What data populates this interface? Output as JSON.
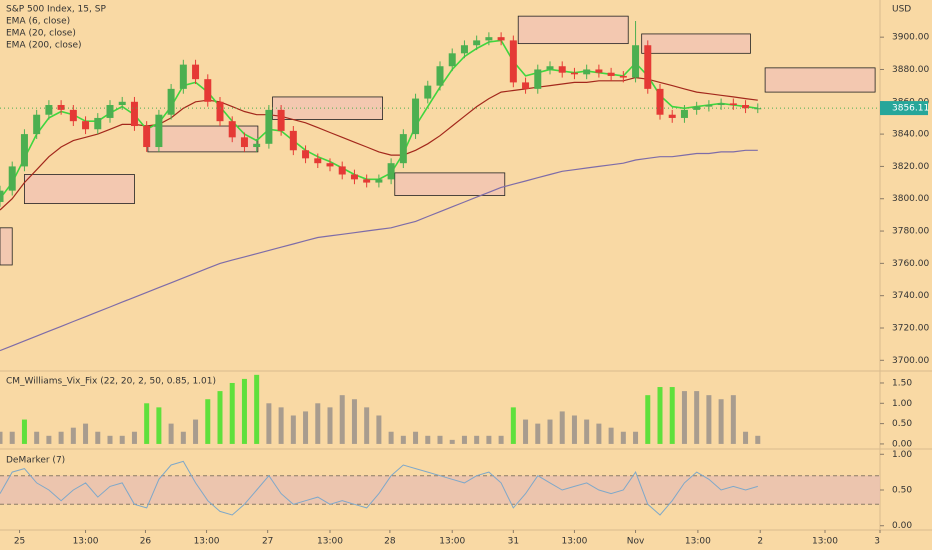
{
  "chart_data": [
    {
      "type": "candlestick",
      "title": "S&P 500 Index, 15, SP",
      "unit": "USD",
      "x": [
        0,
        1,
        2,
        3,
        4,
        5,
        6,
        7,
        8,
        9,
        10,
        11,
        12,
        13,
        14,
        15,
        16,
        17,
        18,
        19,
        20,
        21,
        22,
        23,
        24,
        25,
        26,
        27,
        28,
        29,
        30,
        31,
        32,
        33,
        34,
        35,
        36,
        37,
        38,
        39,
        40,
        41,
        42,
        43,
        44,
        45,
        46,
        47,
        48,
        49,
        50,
        51,
        52,
        53,
        54,
        55,
        56,
        57,
        58,
        59,
        60,
        61,
        62
      ],
      "open": [
        3798,
        3805,
        3820,
        3840,
        3852,
        3858,
        3855,
        3848,
        3843,
        3850,
        3858,
        3860,
        3845,
        3832,
        3852,
        3868,
        3883,
        3874,
        3860,
        3848,
        3838,
        3832,
        3834,
        3855,
        3842,
        3830,
        3825,
        3822,
        3820,
        3815,
        3812,
        3810,
        3812,
        3822,
        3840,
        3862,
        3870,
        3882,
        3890,
        3895,
        3898,
        3900,
        3898,
        3872,
        3868,
        3880,
        3882,
        3878,
        3877,
        3880,
        3878,
        3876,
        3875,
        3895,
        3868,
        3852,
        3850,
        3855,
        3857,
        3858,
        3859,
        3858,
        3856
      ],
      "high": [
        3808,
        3823,
        3843,
        3855,
        3861,
        3861,
        3858,
        3851,
        3853,
        3861,
        3863,
        3863,
        3848,
        3855,
        3871,
        3886,
        3886,
        3877,
        3863,
        3851,
        3841,
        3837,
        3858,
        3858,
        3845,
        3833,
        3828,
        3825,
        3823,
        3818,
        3815,
        3815,
        3825,
        3843,
        3865,
        3873,
        3885,
        3893,
        3898,
        3901,
        3903,
        3903,
        3901,
        3875,
        3883,
        3885,
        3885,
        3881,
        3883,
        3883,
        3881,
        3879,
        3910,
        3898,
        3871,
        3855,
        3858,
        3860,
        3861,
        3862,
        3862,
        3861,
        3859
      ],
      "low": [
        3795,
        3802,
        3817,
        3837,
        3849,
        3852,
        3845,
        3840,
        3840,
        3847,
        3855,
        3842,
        3829,
        3829,
        3849,
        3865,
        3871,
        3857,
        3845,
        3835,
        3829,
        3829,
        3831,
        3839,
        3827,
        3822,
        3819,
        3817,
        3812,
        3809,
        3807,
        3807,
        3809,
        3819,
        3837,
        3859,
        3867,
        3879,
        3887,
        3892,
        3895,
        3895,
        3869,
        3865,
        3865,
        3877,
        3875,
        3874,
        3874,
        3875,
        3873,
        3872,
        3872,
        3865,
        3849,
        3847,
        3847,
        3852,
        3854,
        3855,
        3855,
        3853,
        3853
      ],
      "close": [
        3805,
        3820,
        3840,
        3852,
        3858,
        3855,
        3848,
        3843,
        3850,
        3858,
        3860,
        3845,
        3832,
        3852,
        3868,
        3883,
        3874,
        3860,
        3848,
        3838,
        3832,
        3834,
        3855,
        3842,
        3830,
        3825,
        3822,
        3820,
        3815,
        3812,
        3810,
        3812,
        3822,
        3840,
        3862,
        3870,
        3882,
        3890,
        3895,
        3898,
        3900,
        3898,
        3872,
        3868,
        3880,
        3882,
        3878,
        3877,
        3880,
        3878,
        3876,
        3875,
        3895,
        3868,
        3852,
        3850,
        3855,
        3857,
        3858,
        3859,
        3858,
        3856,
        3856
      ],
      "up_color": "#4caf50",
      "down_color": "#e53935",
      "series": [
        {
          "name": "EMA (6, close)",
          "color": "#3fd63f",
          "values": [
            3800,
            3810,
            3825,
            3840,
            3850,
            3854,
            3852,
            3848,
            3848,
            3853,
            3857,
            3852,
            3843,
            3847,
            3857,
            3870,
            3872,
            3866,
            3857,
            3848,
            3840,
            3836,
            3843,
            3842,
            3836,
            3830,
            3826,
            3823,
            3819,
            3815,
            3812,
            3812,
            3816,
            3828,
            3845,
            3857,
            3869,
            3880,
            3888,
            3893,
            3897,
            3898,
            3885,
            3876,
            3878,
            3880,
            3879,
            3878,
            3879,
            3878,
            3877,
            3876,
            3884,
            3876,
            3864,
            3857,
            3856,
            3857,
            3858,
            3859,
            3858,
            3857,
            3856
          ]
        },
        {
          "name": "EMA (20, close)",
          "color": "#a3281c",
          "values": [
            3793,
            3800,
            3810,
            3818,
            3826,
            3832,
            3836,
            3838,
            3840,
            3843,
            3846,
            3846,
            3845,
            3846,
            3850,
            3856,
            3860,
            3861,
            3860,
            3857,
            3854,
            3852,
            3852,
            3851,
            3849,
            3847,
            3844,
            3841,
            3838,
            3835,
            3832,
            3829,
            3827,
            3827,
            3830,
            3834,
            3839,
            3845,
            3851,
            3857,
            3862,
            3866,
            3867,
            3868,
            3869,
            3870,
            3871,
            3872,
            3872,
            3873,
            3873,
            3873,
            3875,
            3874,
            3872,
            3870,
            3868,
            3866,
            3865,
            3864,
            3863,
            3862,
            3861
          ]
        },
        {
          "name": "EMA (200, close)",
          "color": "#7e6ca8",
          "values": [
            3706,
            3709,
            3712,
            3715,
            3718,
            3721,
            3724,
            3727,
            3730,
            3733,
            3736,
            3739,
            3742,
            3745,
            3748,
            3751,
            3754,
            3757,
            3760,
            3762,
            3764,
            3766,
            3768,
            3770,
            3772,
            3774,
            3776,
            3777,
            3778,
            3779,
            3780,
            3781,
            3782,
            3784,
            3786,
            3789,
            3792,
            3795,
            3798,
            3801,
            3804,
            3807,
            3809,
            3811,
            3813,
            3815,
            3817,
            3818,
            3819,
            3820,
            3821,
            3822,
            3824,
            3825,
            3826,
            3826,
            3827,
            3828,
            3828,
            3829,
            3829,
            3830,
            3830
          ]
        }
      ],
      "zones": [
        {
          "x": [
            0,
            1
          ],
          "y": [
            3759,
            3782
          ]
        },
        {
          "x": [
            2.0,
            11.0
          ],
          "y": [
            3797,
            3815
          ]
        },
        {
          "x": [
            12.1,
            21.1
          ],
          "y": [
            3829,
            3845
          ]
        },
        {
          "x": [
            22.3,
            31.3
          ],
          "y": [
            3849,
            3863
          ]
        },
        {
          "x": [
            32.3,
            41.3
          ],
          "y": [
            3802,
            3816
          ]
        },
        {
          "x": [
            42.4,
            51.4
          ],
          "y": [
            3896,
            3913
          ]
        },
        {
          "x": [
            52.5,
            61.4
          ],
          "y": [
            3890,
            3902
          ]
        },
        {
          "x": [
            62.6,
            71.6
          ],
          "y": [
            3866,
            3881
          ]
        }
      ],
      "zone_color": "#f3c8b0",
      "last_price": 3856.11,
      "xlim": [
        0,
        72
      ],
      "ylim": [
        3694,
        3923
      ],
      "yticks": [
        {
          "value": 3700,
          "label": "3700.00"
        },
        {
          "value": 3720,
          "label": "3720.00"
        },
        {
          "value": 3740,
          "label": "3740.00"
        },
        {
          "value": 3760,
          "label": "3760.00"
        },
        {
          "value": 3780,
          "label": "3780.00"
        },
        {
          "value": 3800,
          "label": "3800.00"
        },
        {
          "value": 3820,
          "label": "3820.00"
        },
        {
          "value": 3840,
          "label": "3840.00"
        },
        {
          "value": 3860,
          "label": "3860.00"
        },
        {
          "value": 3880,
          "label": "3880.00"
        },
        {
          "value": 3900,
          "label": "3900.00"
        }
      ]
    },
    {
      "type": "bar",
      "title": "CM_Williams_Vix_Fix (22, 20, 2, 50, 0.85, 1.01)",
      "values": [
        0.3,
        0.3,
        0.6,
        0.3,
        0.2,
        0.3,
        0.4,
        0.5,
        0.3,
        0.2,
        0.2,
        0.3,
        1.0,
        0.9,
        0.5,
        0.3,
        0.6,
        1.1,
        1.3,
        1.5,
        1.6,
        1.7,
        1.0,
        0.9,
        0.7,
        0.8,
        1.0,
        0.9,
        1.2,
        1.1,
        0.9,
        0.7,
        0.3,
        0.2,
        0.3,
        0.2,
        0.2,
        0.1,
        0.2,
        0.2,
        0.2,
        0.2,
        0.9,
        0.6,
        0.5,
        0.6,
        0.8,
        0.7,
        0.6,
        0.5,
        0.4,
        0.3,
        0.3,
        1.2,
        1.4,
        1.4,
        1.3,
        1.3,
        1.2,
        1.1,
        1.2,
        0.3,
        0.2
      ],
      "colors": [
        "#a89c8e",
        "#a89c8e",
        "#5fe03c",
        "#a89c8e",
        "#a89c8e",
        "#a89c8e",
        "#a89c8e",
        "#a89c8e",
        "#a89c8e",
        "#a89c8e",
        "#a89c8e",
        "#a89c8e",
        "#5fe03c",
        "#5fe03c",
        "#a89c8e",
        "#a89c8e",
        "#a89c8e",
        "#5fe03c",
        "#5fe03c",
        "#5fe03c",
        "#5fe03c",
        "#5fe03c",
        "#a89c8e",
        "#a89c8e",
        "#a89c8e",
        "#a89c8e",
        "#a89c8e",
        "#a89c8e",
        "#a89c8e",
        "#a89c8e",
        "#a89c8e",
        "#a89c8e",
        "#a89c8e",
        "#a89c8e",
        "#a89c8e",
        "#a89c8e",
        "#a89c8e",
        "#a89c8e",
        "#a89c8e",
        "#a89c8e",
        "#a89c8e",
        "#a89c8e",
        "#5fe03c",
        "#a89c8e",
        "#a89c8e",
        "#a89c8e",
        "#a89c8e",
        "#a89c8e",
        "#a89c8e",
        "#a89c8e",
        "#a89c8e",
        "#a89c8e",
        "#a89c8e",
        "#5fe03c",
        "#5fe03c",
        "#5fe03c",
        "#a89c8e",
        "#a89c8e",
        "#a89c8e",
        "#a89c8e",
        "#a89c8e",
        "#a89c8e",
        "#a89c8e"
      ],
      "ylim": [
        -0.1,
        1.77
      ],
      "yticks": [
        {
          "value": 0,
          "label": "0.00"
        },
        {
          "value": 0.5,
          "label": "0.50"
        },
        {
          "value": 1,
          "label": "1.00"
        },
        {
          "value": 1.5,
          "label": "1.50"
        }
      ]
    },
    {
      "type": "line",
      "title": "DeMarker (7)",
      "color": "#7fa8c9",
      "values": [
        0.45,
        0.75,
        0.8,
        0.6,
        0.5,
        0.35,
        0.5,
        0.6,
        0.4,
        0.55,
        0.6,
        0.3,
        0.25,
        0.65,
        0.85,
        0.9,
        0.6,
        0.35,
        0.2,
        0.15,
        0.3,
        0.5,
        0.7,
        0.45,
        0.3,
        0.35,
        0.4,
        0.3,
        0.35,
        0.3,
        0.25,
        0.45,
        0.7,
        0.85,
        0.8,
        0.75,
        0.7,
        0.65,
        0.6,
        0.7,
        0.75,
        0.6,
        0.25,
        0.45,
        0.7,
        0.6,
        0.5,
        0.55,
        0.6,
        0.5,
        0.45,
        0.5,
        0.75,
        0.3,
        0.15,
        0.35,
        0.6,
        0.75,
        0.65,
        0.5,
        0.55,
        0.5,
        0.55
      ],
      "band": [
        0.3,
        0.7
      ],
      "band_color": "#e9bfb0",
      "ylim": [
        -0.06,
        1.06
      ],
      "yticks": [
        {
          "value": 0,
          "label": "0.00"
        },
        {
          "value": 0.5,
          "label": "0.50"
        },
        {
          "value": 1,
          "label": "1.00"
        }
      ],
      "xticks": [
        {
          "value": 1.6,
          "label": "25"
        },
        {
          "value": 7.0,
          "label": "13:00"
        },
        {
          "value": 11.9,
          "label": "26"
        },
        {
          "value": 16.9,
          "label": "13:00"
        },
        {
          "value": 21.9,
          "label": "27"
        },
        {
          "value": 27.0,
          "label": "13:00"
        },
        {
          "value": 31.9,
          "label": "28"
        },
        {
          "value": 37.0,
          "label": "13:00"
        },
        {
          "value": 42.0,
          "label": "31"
        },
        {
          "value": 47.0,
          "label": "13:00"
        },
        {
          "value": 52.0,
          "label": "Nov"
        },
        {
          "value": 57.1,
          "label": "13:00"
        },
        {
          "value": 62.2,
          "label": "2"
        },
        {
          "value": 67.5,
          "label": "13:00"
        },
        {
          "value": 72,
          "label": "3"
        }
      ]
    }
  ]
}
